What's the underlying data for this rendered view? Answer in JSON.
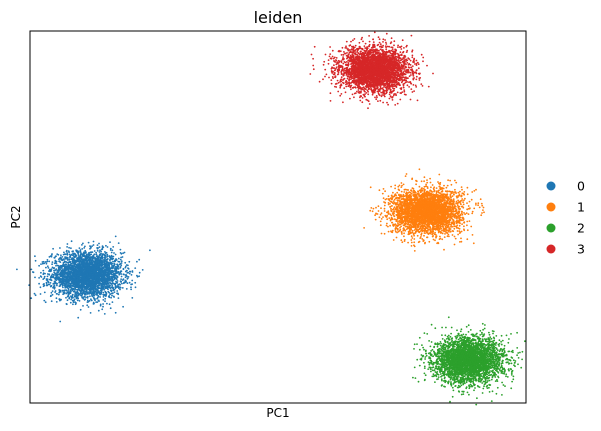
{
  "chart_data": {
    "type": "scatter",
    "title": "leiden",
    "xlabel": "PC1",
    "ylabel": "PC2",
    "xlim": [
      0,
      100
    ],
    "ylim": [
      0,
      100
    ],
    "grid": false,
    "ticks_shown": false,
    "legend": {
      "placement": "right",
      "entries": [
        "0",
        "1",
        "2",
        "3"
      ]
    },
    "series": [
      {
        "name": "0",
        "color": "#1f77b4",
        "center": [
          11.5,
          34.5
        ],
        "spread": [
          3.5,
          3.0
        ],
        "count": 3500
      },
      {
        "name": "1",
        "color": "#ff7f0e",
        "center": [
          80.0,
          51.5
        ],
        "spread": [
          3.5,
          3.0
        ],
        "count": 3500
      },
      {
        "name": "2",
        "color": "#2ca02c",
        "center": [
          88.5,
          11.5
        ],
        "spread": [
          3.5,
          3.0
        ],
        "count": 3500
      },
      {
        "name": "3",
        "color": "#d62728",
        "center": [
          69.5,
          89.5
        ],
        "spread": [
          3.5,
          3.0
        ],
        "count": 3500
      }
    ]
  }
}
